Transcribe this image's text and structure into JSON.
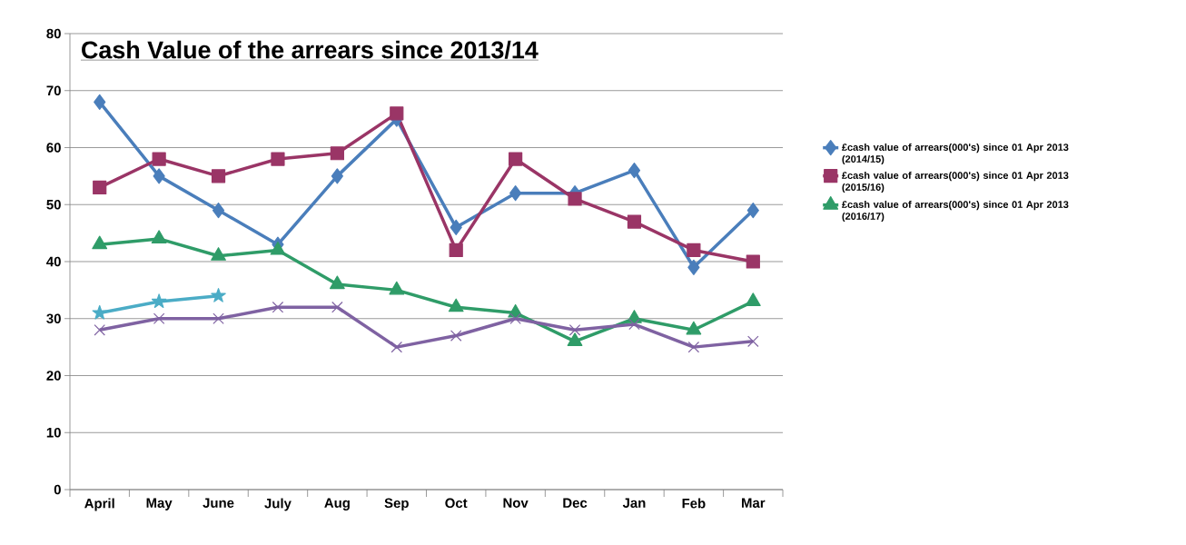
{
  "chart_data": {
    "type": "line",
    "title": "Cash Value of the arrears since 2013/14",
    "categories": [
      "April",
      "May",
      "June",
      "July",
      "Aug",
      "Sep",
      "Oct",
      "Nov",
      "Dec",
      "Jan",
      "Feb",
      "Mar"
    ],
    "series": [
      {
        "name": "£cash value of arrears(000's) since 01 Apr 2013 (2014/15)",
        "color": "#4a7ebb",
        "marker": "diamond",
        "values": [
          68,
          55,
          49,
          43,
          55,
          65,
          46,
          52,
          52,
          56,
          39,
          49
        ]
      },
      {
        "name": "£cash value of arrears(000's) since 01 Apr 2013 (2015/16)",
        "color": "#9a3566",
        "marker": "square",
        "values": [
          53,
          58,
          55,
          58,
          59,
          66,
          42,
          58,
          51,
          47,
          42,
          40
        ]
      },
      {
        "name": "£cash value of arrears(000's) since 01 Apr 2013 (2016/17)",
        "color": "#2f9c68",
        "marker": "triangle",
        "values": [
          43,
          44,
          41,
          42,
          36,
          35,
          32,
          31,
          26,
          30,
          28,
          33
        ]
      },
      {
        "color": "#7f62a2",
        "marker": "cross",
        "values": [
          28,
          30,
          30,
          32,
          32,
          25,
          27,
          30,
          28,
          29,
          25,
          26
        ]
      },
      {
        "color": "#4bacc6",
        "marker": "star",
        "values": [
          31,
          33,
          34,
          null,
          null,
          null,
          null,
          null,
          null,
          null,
          null,
          null
        ]
      }
    ],
    "ylim": [
      0,
      80
    ],
    "yticks": [
      0,
      10,
      20,
      30,
      40,
      50,
      60,
      70,
      80
    ],
    "grid": "y",
    "legend": "right",
    "line_style": "solid"
  }
}
